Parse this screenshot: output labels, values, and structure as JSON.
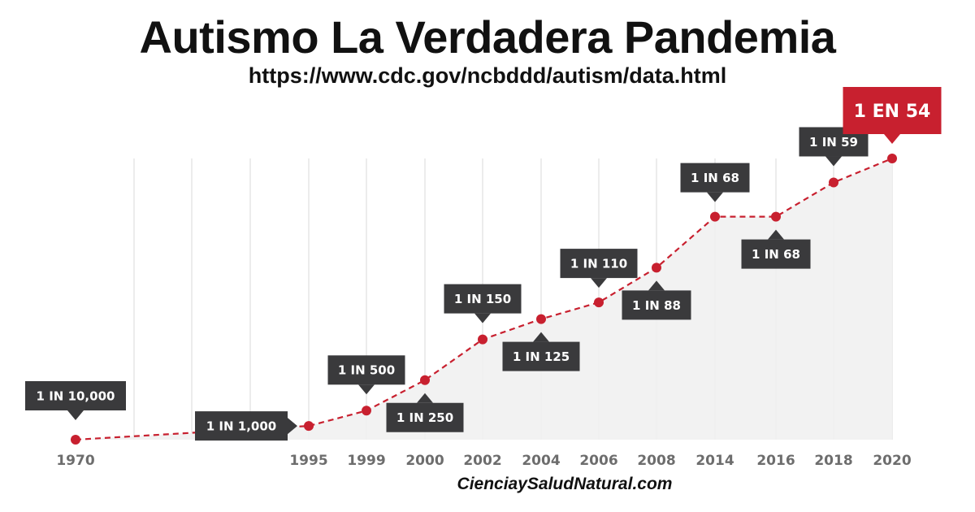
{
  "title": "Autismo La Verdadera Pandemia",
  "subtitle": "https://www.cdc.gov/ncbddd/autism/data.html",
  "footer": "CienciaySaludNatural.com",
  "colors": {
    "accent": "#c8202f",
    "callout": "#3a3a3c",
    "area": "#f0f0f0",
    "axis_text": "#6d6d6d"
  },
  "chart_data": {
    "type": "line",
    "x": [
      "1970",
      "1995",
      "1999",
      "2000",
      "2002",
      "2004",
      "2006",
      "2008",
      "2014",
      "2016",
      "2018",
      "2020"
    ],
    "values": [
      10000,
      1000,
      500,
      250,
      150,
      125,
      110,
      88,
      68,
      68,
      59,
      54
    ],
    "data_labels": [
      "1 IN 10,000",
      "1 IN 1,000",
      "1 IN 500",
      "1 IN 250",
      "1 IN 150",
      "1 IN 125",
      "1 IN 110",
      "1 IN 88",
      "1 IN 68",
      "1 IN 68",
      "1 IN 59",
      "1 EN 54"
    ],
    "highlight_index": 11,
    "y_scale": "reciprocal",
    "grid": "vertical",
    "legend": "none"
  }
}
